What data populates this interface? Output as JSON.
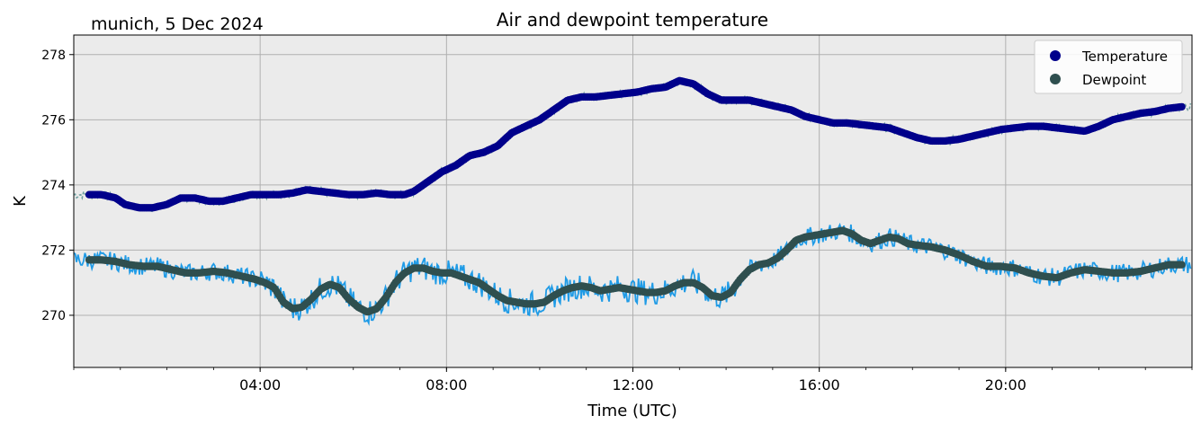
{
  "header": {
    "title": "Air and dewpoint temperature",
    "location_label": "munich, 5 Dec 2024"
  },
  "chart_data": {
    "type": "line",
    "title": "Air and dewpoint temperature",
    "xlabel": "Time (UTC)",
    "ylabel": "K",
    "xlim_hours": [
      0,
      24
    ],
    "ylim": [
      268.4,
      278.6
    ],
    "x_ticks": [
      {
        "hour": 4,
        "label": "04:00"
      },
      {
        "hour": 8,
        "label": "08:00"
      },
      {
        "hour": 12,
        "label": "12:00"
      },
      {
        "hour": 16,
        "label": "16:00"
      },
      {
        "hour": 20,
        "label": "20:00"
      }
    ],
    "y_ticks": [
      270,
      272,
      274,
      276,
      278
    ],
    "grid": true,
    "legend_position": "top-right",
    "background_color": "#ebebeb",
    "series": [
      {
        "name": "Temperature",
        "role": "smoothed",
        "color": "#00008b",
        "x": [
          0.33,
          0.6,
          0.9,
          1.1,
          1.4,
          1.7,
          2.0,
          2.3,
          2.6,
          2.9,
          3.2,
          3.5,
          3.8,
          4.1,
          4.4,
          4.7,
          5.0,
          5.3,
          5.6,
          5.9,
          6.2,
          6.5,
          6.8,
          7.1,
          7.3,
          7.6,
          7.9,
          8.2,
          8.5,
          8.8,
          9.1,
          9.4,
          9.7,
          10.0,
          10.3,
          10.6,
          10.9,
          11.2,
          11.5,
          11.8,
          12.1,
          12.4,
          12.7,
          13.0,
          13.3,
          13.6,
          13.9,
          14.2,
          14.5,
          14.8,
          15.1,
          15.4,
          15.7,
          16.0,
          16.3,
          16.6,
          16.9,
          17.2,
          17.5,
          17.8,
          18.1,
          18.4,
          18.7,
          19.0,
          19.3,
          19.6,
          19.9,
          20.2,
          20.5,
          20.8,
          21.1,
          21.4,
          21.7,
          22.0,
          22.3,
          22.6,
          22.9,
          23.2,
          23.5,
          23.8
        ],
        "y": [
          273.7,
          273.7,
          273.6,
          273.4,
          273.3,
          273.3,
          273.4,
          273.6,
          273.6,
          273.5,
          273.5,
          273.6,
          273.7,
          273.7,
          273.7,
          273.75,
          273.85,
          273.8,
          273.75,
          273.7,
          273.7,
          273.75,
          273.7,
          273.7,
          273.8,
          274.1,
          274.4,
          274.6,
          274.9,
          275.0,
          275.2,
          275.6,
          275.8,
          276.0,
          276.3,
          276.6,
          276.7,
          276.7,
          276.75,
          276.8,
          276.85,
          276.95,
          277.0,
          277.2,
          277.1,
          276.8,
          276.6,
          276.6,
          276.6,
          276.5,
          276.4,
          276.3,
          276.1,
          276.0,
          275.9,
          275.9,
          275.85,
          275.8,
          275.75,
          275.6,
          275.45,
          275.35,
          275.35,
          275.4,
          275.5,
          275.6,
          275.7,
          275.75,
          275.8,
          275.8,
          275.75,
          275.7,
          275.65,
          275.8,
          276.0,
          276.1,
          276.2,
          276.25,
          276.35,
          276.4
        ]
      },
      {
        "name": "Dewpoint",
        "role": "smoothed",
        "color": "#2f4f4f",
        "x": [
          0.33,
          0.6,
          0.9,
          1.2,
          1.5,
          1.8,
          2.1,
          2.4,
          2.7,
          3.0,
          3.3,
          3.6,
          3.9,
          4.1,
          4.3,
          4.5,
          4.7,
          4.9,
          5.1,
          5.3,
          5.5,
          5.7,
          5.9,
          6.1,
          6.3,
          6.5,
          6.7,
          6.9,
          7.1,
          7.3,
          7.5,
          7.7,
          7.9,
          8.1,
          8.3,
          8.5,
          8.7,
          8.9,
          9.1,
          9.3,
          9.5,
          9.7,
          9.9,
          10.1,
          10.3,
          10.5,
          10.7,
          10.9,
          11.1,
          11.3,
          11.5,
          11.7,
          11.9,
          12.1,
          12.3,
          12.5,
          12.7,
          12.9,
          13.1,
          13.3,
          13.5,
          13.7,
          13.9,
          14.1,
          14.3,
          14.5,
          14.7,
          14.9,
          15.1,
          15.3,
          15.5,
          15.7,
          15.9,
          16.1,
          16.3,
          16.5,
          16.7,
          16.9,
          17.1,
          17.3,
          17.5,
          17.7,
          17.9,
          18.1,
          18.4,
          18.7,
          19.0,
          19.3,
          19.6,
          19.9,
          20.2,
          20.5,
          20.8,
          21.1,
          21.4,
          21.7,
          22.0,
          22.3,
          22.6,
          22.9,
          23.2,
          23.5,
          23.8
        ],
        "y": [
          271.7,
          271.7,
          271.65,
          271.55,
          271.5,
          271.5,
          271.4,
          271.3,
          271.3,
          271.35,
          271.3,
          271.2,
          271.1,
          271.0,
          270.85,
          270.4,
          270.2,
          270.25,
          270.5,
          270.8,
          270.95,
          270.85,
          270.5,
          270.25,
          270.1,
          270.2,
          270.55,
          271.0,
          271.3,
          271.45,
          271.45,
          271.35,
          271.3,
          271.3,
          271.2,
          271.1,
          271.0,
          270.8,
          270.6,
          270.45,
          270.4,
          270.35,
          270.35,
          270.4,
          270.6,
          270.75,
          270.85,
          270.9,
          270.85,
          270.75,
          270.8,
          270.85,
          270.8,
          270.75,
          270.7,
          270.7,
          270.75,
          270.9,
          271.0,
          271.0,
          270.85,
          270.6,
          270.55,
          270.7,
          271.1,
          271.4,
          271.55,
          271.6,
          271.75,
          272.0,
          272.3,
          272.4,
          272.45,
          272.5,
          272.55,
          272.6,
          272.5,
          272.3,
          272.2,
          272.3,
          272.4,
          272.35,
          272.2,
          272.15,
          272.1,
          272.0,
          271.85,
          271.65,
          271.5,
          271.5,
          271.45,
          271.3,
          271.2,
          271.15,
          271.3,
          271.4,
          271.35,
          271.3,
          271.3,
          271.35,
          271.45,
          271.55,
          271.55
        ]
      }
    ]
  },
  "raw_series": [
    {
      "role": "raw-temperature",
      "color": "#6fa0a0"
    },
    {
      "role": "raw-dewpoint",
      "color": "#1f9be6"
    }
  ]
}
